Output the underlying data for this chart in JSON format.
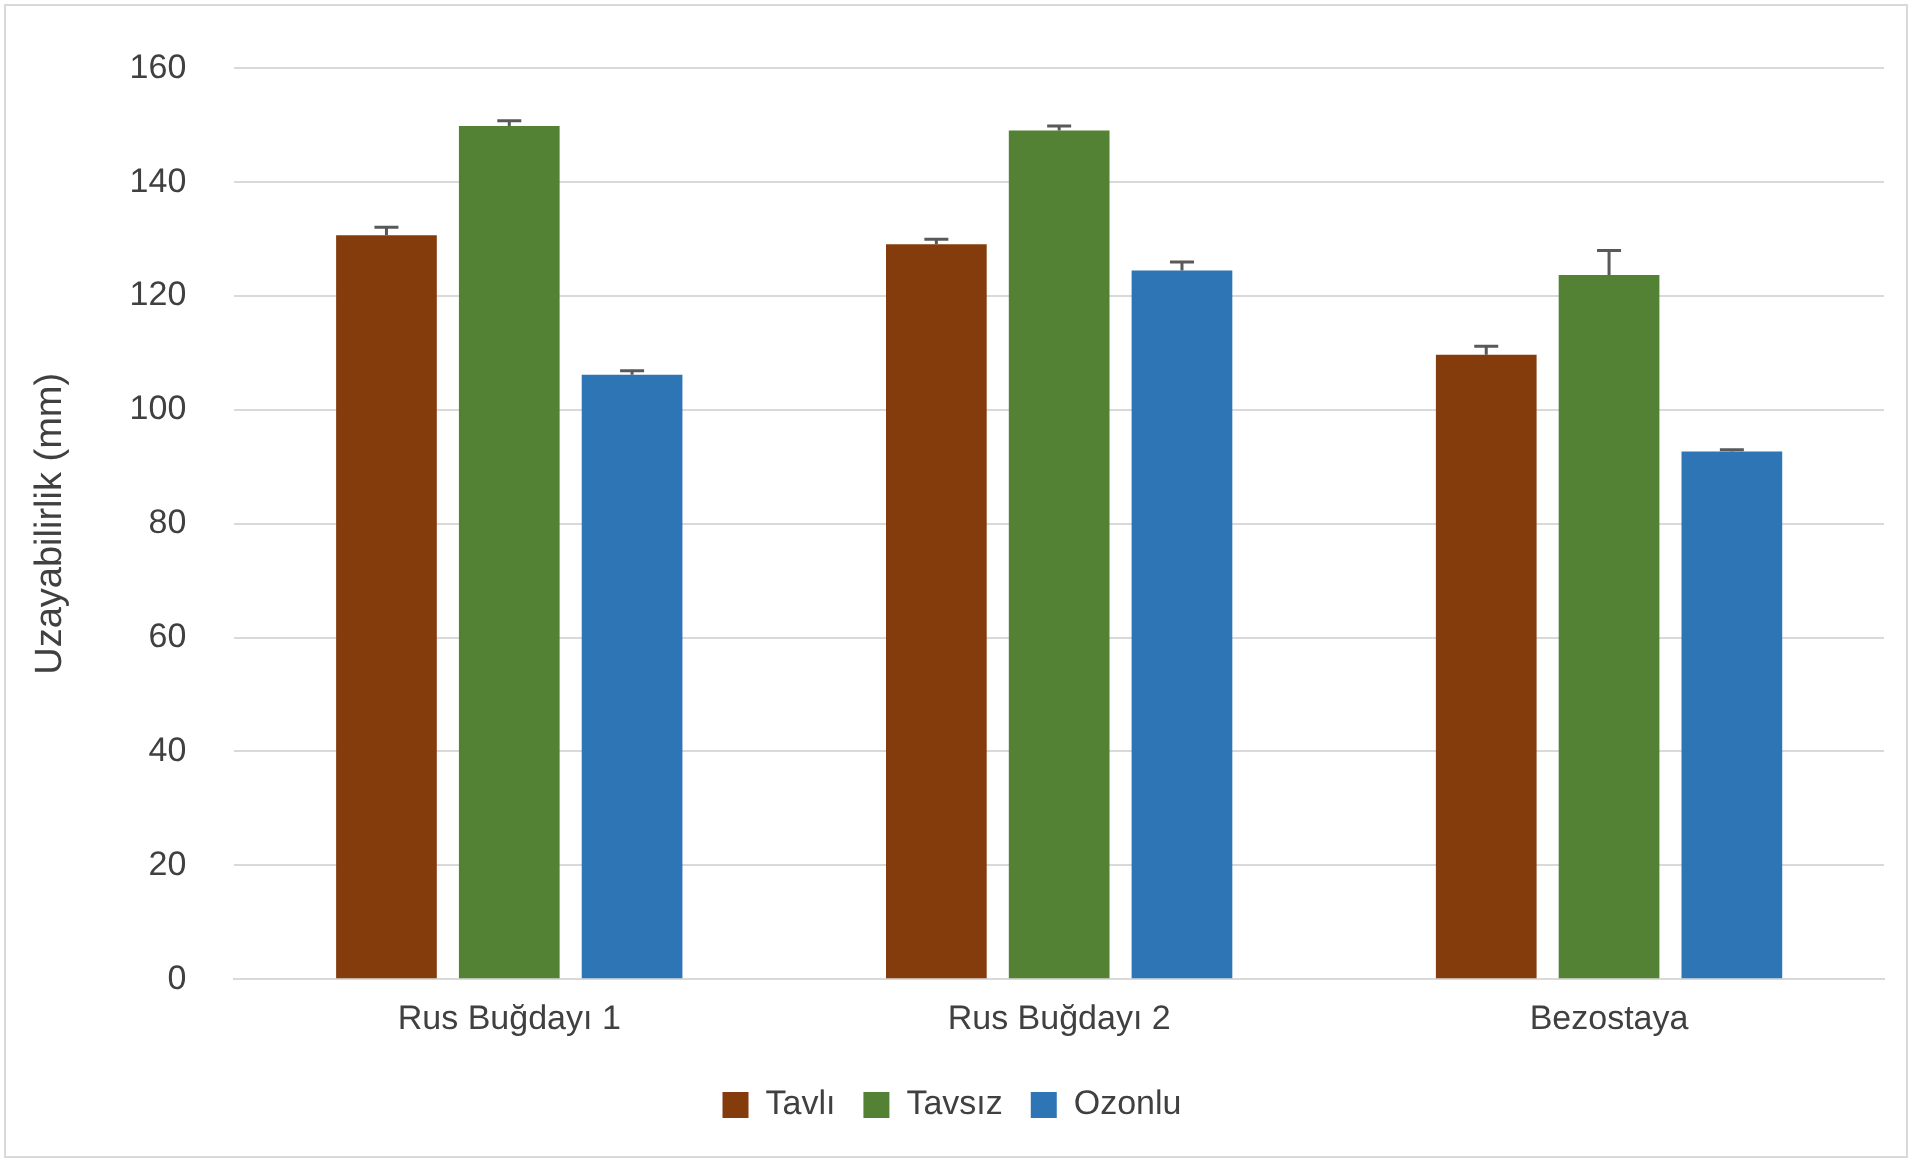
{
  "chart_data": {
    "type": "bar",
    "ylabel": "Uzayabilirlik (mm)",
    "categories": [
      "Rus Buğdayı 1",
      "Rus Buğdayı 2",
      "Bezostaya"
    ],
    "series": [
      {
        "name": "Tavlı",
        "color": "#843c0c",
        "values": [
          130.7,
          129.1,
          109.7
        ],
        "errors": [
          [
            130.7,
            132.1
          ],
          [
            129.1,
            130.0
          ],
          [
            109.7,
            111.2
          ]
        ]
      },
      {
        "name": "Tavsız",
        "color": "#548235",
        "values": [
          149.9,
          149.1,
          123.7
        ],
        "errors": [
          [
            149.9,
            150.8
          ],
          [
            149.1,
            149.9
          ],
          [
            123.7,
            128.0
          ]
        ]
      },
      {
        "name": "Ozonlu",
        "color": "#2e75b6",
        "values": [
          106.2,
          124.5,
          92.7
        ],
        "errors": [
          [
            106.2,
            106.9
          ],
          [
            124.5,
            126.0
          ],
          [
            92.7,
            93.0
          ]
        ]
      }
    ],
    "ylim": [
      0,
      160
    ],
    "yticks": [
      0,
      20,
      40,
      60,
      80,
      100,
      120,
      140,
      160
    ],
    "grid": "y",
    "legend": "bottom"
  }
}
